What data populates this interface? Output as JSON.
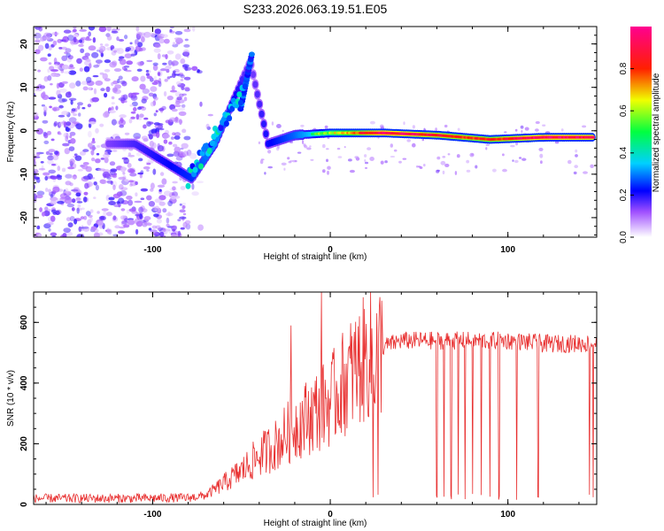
{
  "chart_data": [
    {
      "type": "heatmap",
      "title": "S233.2026.063.19.51.E05",
      "xlabel": "Height of straight line (km)",
      "ylabel": "Frequency (Hz)",
      "xlim": [
        -167,
        150
      ],
      "ylim": [
        -24.5,
        24
      ],
      "xticks": [
        -100,
        0,
        100
      ],
      "yticks": [
        -20,
        -10,
        0,
        10,
        20
      ],
      "colorbar": {
        "label": "Normalized spectral amplitude",
        "range": [
          0,
          1
        ],
        "ticks": [
          "0.0",
          "0.2",
          "0.4",
          "0.6",
          "0.8"
        ],
        "tick_values": [
          0,
          0.2,
          0.4,
          0.6,
          0.8
        ]
      },
      "ridge": {
        "description_points": [
          {
            "x": -125,
            "y": -3,
            "amp": 0.2
          },
          {
            "x": -110,
            "y": -3,
            "amp": 0.25
          },
          {
            "x": -78,
            "y": -11,
            "amp": 0.35
          },
          {
            "x": -65,
            "y": -3,
            "amp": 0.45
          },
          {
            "x": -45,
            "y": 16,
            "amp": 0.2
          },
          {
            "x": -35,
            "y": -3,
            "amp": 0.3
          },
          {
            "x": -20,
            "y": -1,
            "amp": 0.4
          },
          {
            "x": 0,
            "y": -0.5,
            "amp": 0.6
          },
          {
            "x": 30,
            "y": -0.5,
            "amp": 0.95
          },
          {
            "x": 60,
            "y": -1,
            "amp": 0.85
          },
          {
            "x": 90,
            "y": -2,
            "amp": 0.8
          },
          {
            "x": 120,
            "y": -1.5,
            "amp": 0.95
          },
          {
            "x": 148,
            "y": -1.5,
            "amp": 0.9
          }
        ]
      }
    },
    {
      "type": "line",
      "xlabel": "Height of straight line (km)",
      "ylabel": "SNR (10 * v/v)",
      "xlim": [
        -167,
        150
      ],
      "ylim": [
        0,
        700
      ],
      "xticks": [
        -100,
        0,
        100
      ],
      "yticks": [
        0,
        200,
        400,
        600
      ],
      "color": "#e83030",
      "series": [
        {
          "name": "SNR",
          "x": [
            -167,
            -140,
            -110,
            -80,
            -70,
            -60,
            -50,
            -40,
            -30,
            -20,
            -10,
            0,
            10,
            20,
            30,
            40,
            60,
            80,
            100,
            120,
            150
          ],
          "values": [
            20,
            20,
            20,
            22,
            30,
            70,
            110,
            160,
            200,
            260,
            300,
            340,
            420,
            480,
            520,
            540,
            540,
            540,
            540,
            530,
            530
          ]
        }
      ],
      "spikes_up": [
        [
          -22,
          590
        ],
        [
          -5,
          700
        ],
        [
          105,
          610
        ]
      ],
      "dropouts": [
        24,
        27,
        60,
        64,
        68,
        72,
        76,
        80,
        85,
        90,
        95,
        105,
        117,
        146,
        148
      ]
    }
  ]
}
